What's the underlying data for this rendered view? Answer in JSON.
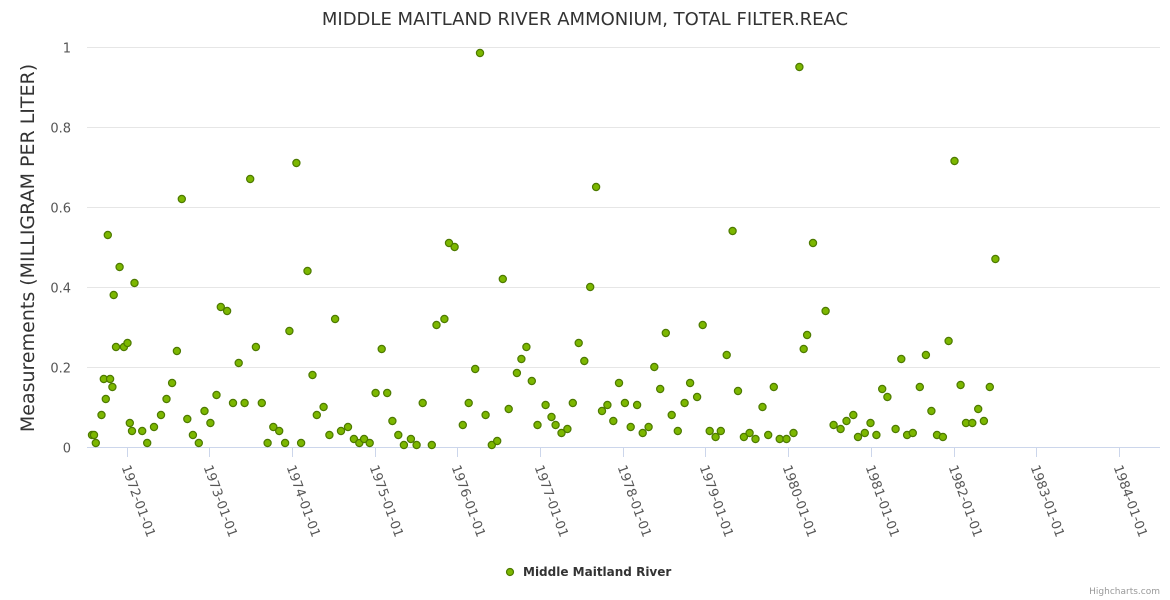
{
  "chart_data": {
    "type": "scatter",
    "title": "MIDDLE MAITLAND RIVER AMMONIUM, TOTAL FILTER.REAC",
    "ylabel": "Measurements (MILLIGRAM PER LITER)",
    "xlabel": "",
    "ylim": [
      0,
      1
    ],
    "yticks": [
      0,
      0.2,
      0.4,
      0.6,
      0.8,
      1
    ],
    "ytick_labels": [
      "0",
      "0.2",
      "0.4",
      "0.6",
      "0.8",
      "1"
    ],
    "xlim": [
      "1971-07-10",
      "1984-07-01"
    ],
    "xticks": [
      "1972-01-01",
      "1973-01-01",
      "1974-01-01",
      "1975-01-01",
      "1976-01-01",
      "1977-01-01",
      "1978-01-01",
      "1979-01-01",
      "1980-01-01",
      "1981-01-01",
      "1982-01-01",
      "1983-01-01",
      "1984-01-01"
    ],
    "grid": true,
    "legend_position": "bottom-center",
    "series": [
      {
        "name": "Middle Maitland River",
        "color": "#7cb700",
        "border_color": "#4d7a00",
        "points": [
          [
            "1971-08-01",
            0.03
          ],
          [
            "1971-08-10",
            0.03
          ],
          [
            "1971-08-18",
            0.01
          ],
          [
            "1971-09-12",
            0.08
          ],
          [
            "1971-09-22",
            0.17
          ],
          [
            "1971-10-01",
            0.12
          ],
          [
            "1971-10-10",
            0.53
          ],
          [
            "1971-10-20",
            0.17
          ],
          [
            "1971-10-30",
            0.15
          ],
          [
            "1971-11-05",
            0.38
          ],
          [
            "1971-11-15",
            0.25
          ],
          [
            "1971-12-01",
            0.45
          ],
          [
            "1971-12-20",
            0.25
          ],
          [
            "1972-01-05",
            0.26
          ],
          [
            "1972-01-15",
            0.06
          ],
          [
            "1972-01-25",
            0.04
          ],
          [
            "1972-02-05",
            0.41
          ],
          [
            "1972-03-10",
            0.04
          ],
          [
            "1972-04-01",
            0.01
          ],
          [
            "1972-05-01",
            0.05
          ],
          [
            "1972-06-01",
            0.08
          ],
          [
            "1972-06-25",
            0.12
          ],
          [
            "1972-07-20",
            0.16
          ],
          [
            "1972-08-10",
            0.24
          ],
          [
            "1972-09-01",
            0.62
          ],
          [
            "1972-09-25",
            0.07
          ],
          [
            "1972-10-20",
            0.03
          ],
          [
            "1972-11-15",
            0.01
          ],
          [
            "1972-12-10",
            0.09
          ],
          [
            "1973-01-05",
            0.06
          ],
          [
            "1973-02-01",
            0.13
          ],
          [
            "1973-02-20",
            0.35
          ],
          [
            "1973-03-20",
            0.34
          ],
          [
            "1973-04-15",
            0.11
          ],
          [
            "1973-05-10",
            0.21
          ],
          [
            "1973-06-05",
            0.11
          ],
          [
            "1973-06-30",
            0.67
          ],
          [
            "1973-07-25",
            0.25
          ],
          [
            "1973-08-20",
            0.11
          ],
          [
            "1973-09-15",
            0.01
          ],
          [
            "1973-10-10",
            0.05
          ],
          [
            "1973-11-05",
            0.04
          ],
          [
            "1973-12-01",
            0.01
          ],
          [
            "1973-12-20",
            0.29
          ],
          [
            "1974-01-20",
            0.71
          ],
          [
            "1974-02-10",
            0.01
          ],
          [
            "1974-03-10",
            0.44
          ],
          [
            "1974-04-01",
            0.18
          ],
          [
            "1974-04-20",
            0.08
          ],
          [
            "1974-05-20",
            0.1
          ],
          [
            "1974-06-15",
            0.03
          ],
          [
            "1974-07-10",
            0.32
          ],
          [
            "1974-08-05",
            0.04
          ],
          [
            "1974-09-05",
            0.05
          ],
          [
            "1974-10-01",
            0.02
          ],
          [
            "1974-10-25",
            0.01
          ],
          [
            "1974-11-15",
            0.02
          ],
          [
            "1974-12-10",
            0.01
          ],
          [
            "1975-01-05",
            0.135
          ],
          [
            "1975-02-01",
            0.245
          ],
          [
            "1975-02-25",
            0.135
          ],
          [
            "1975-03-20",
            0.065
          ],
          [
            "1975-04-15",
            0.03
          ],
          [
            "1975-05-10",
            0.005
          ],
          [
            "1975-06-10",
            0.02
          ],
          [
            "1975-07-05",
            0.005
          ],
          [
            "1975-08-01",
            0.11
          ],
          [
            "1975-09-10",
            0.005
          ],
          [
            "1975-10-01",
            0.305
          ],
          [
            "1975-11-05",
            0.32
          ],
          [
            "1975-11-25",
            0.51
          ],
          [
            "1975-12-20",
            0.5
          ],
          [
            "1976-01-25",
            0.055
          ],
          [
            "1976-02-20",
            0.11
          ],
          [
            "1976-03-20",
            0.195
          ],
          [
            "1976-04-10",
            0.985
          ],
          [
            "1976-05-05",
            0.08
          ],
          [
            "1976-06-01",
            0.005
          ],
          [
            "1976-06-25",
            0.015
          ],
          [
            "1976-07-20",
            0.42
          ],
          [
            "1976-08-15",
            0.095
          ],
          [
            "1976-09-20",
            0.185
          ],
          [
            "1976-10-10",
            0.22
          ],
          [
            "1976-11-01",
            0.25
          ],
          [
            "1976-11-25",
            0.165
          ],
          [
            "1976-12-20",
            0.055
          ],
          [
            "1977-01-25",
            0.105
          ],
          [
            "1977-02-20",
            0.075
          ],
          [
            "1977-03-10",
            0.055
          ],
          [
            "1977-04-05",
            0.035
          ],
          [
            "1977-05-01",
            0.045
          ],
          [
            "1977-05-25",
            0.11
          ],
          [
            "1977-06-20",
            0.26
          ],
          [
            "1977-07-15",
            0.215
          ],
          [
            "1977-08-10",
            0.4
          ],
          [
            "1977-09-05",
            0.65
          ],
          [
            "1977-10-01",
            0.09
          ],
          [
            "1977-10-25",
            0.105
          ],
          [
            "1977-11-20",
            0.065
          ],
          [
            "1977-12-15",
            0.16
          ],
          [
            "1978-01-10",
            0.11
          ],
          [
            "1978-02-05",
            0.05
          ],
          [
            "1978-03-05",
            0.105
          ],
          [
            "1978-03-30",
            0.035
          ],
          [
            "1978-04-25",
            0.05
          ],
          [
            "1978-05-20",
            0.2
          ],
          [
            "1978-06-15",
            0.145
          ],
          [
            "1978-07-10",
            0.285
          ],
          [
            "1978-08-05",
            0.08
          ],
          [
            "1978-09-01",
            0.04
          ],
          [
            "1978-10-01",
            0.11
          ],
          [
            "1978-10-25",
            0.16
          ],
          [
            "1978-11-25",
            0.125
          ],
          [
            "1978-12-20",
            0.305
          ],
          [
            "1979-01-20",
            0.04
          ],
          [
            "1979-02-15",
            0.025
          ],
          [
            "1979-03-10",
            0.04
          ],
          [
            "1979-04-05",
            0.23
          ],
          [
            "1979-05-01",
            0.54
          ],
          [
            "1979-05-25",
            0.14
          ],
          [
            "1979-06-20",
            0.025
          ],
          [
            "1979-07-15",
            0.035
          ],
          [
            "1979-08-10",
            0.02
          ],
          [
            "1979-09-10",
            0.1
          ],
          [
            "1979-10-05",
            0.03
          ],
          [
            "1979-10-30",
            0.15
          ],
          [
            "1979-11-25",
            0.02
          ],
          [
            "1979-12-25",
            0.02
          ],
          [
            "1980-01-25",
            0.035
          ],
          [
            "1980-02-20",
            0.95
          ],
          [
            "1980-03-10",
            0.245
          ],
          [
            "1980-03-25",
            0.28
          ],
          [
            "1980-04-20",
            0.51
          ],
          [
            "1980-06-15",
            0.34
          ],
          [
            "1980-07-20",
            0.055
          ],
          [
            "1980-08-20",
            0.045
          ],
          [
            "1980-09-15",
            0.065
          ],
          [
            "1980-10-15",
            0.08
          ],
          [
            "1980-11-05",
            0.025
          ],
          [
            "1980-12-05",
            0.035
          ],
          [
            "1980-12-30",
            0.06
          ],
          [
            "1981-01-25",
            0.03
          ],
          [
            "1981-02-20",
            0.145
          ],
          [
            "1981-03-15",
            0.125
          ],
          [
            "1981-04-20",
            0.045
          ],
          [
            "1981-05-15",
            0.22
          ],
          [
            "1981-06-10",
            0.03
          ],
          [
            "1981-07-05",
            0.035
          ],
          [
            "1981-08-05",
            0.15
          ],
          [
            "1981-09-01",
            0.23
          ],
          [
            "1981-09-25",
            0.09
          ],
          [
            "1981-10-20",
            0.03
          ],
          [
            "1981-11-15",
            0.025
          ],
          [
            "1981-12-10",
            0.265
          ],
          [
            "1982-01-05",
            0.715
          ],
          [
            "1982-02-01",
            0.155
          ],
          [
            "1982-02-25",
            0.06
          ],
          [
            "1982-03-25",
            0.06
          ],
          [
            "1982-04-20",
            0.095
          ],
          [
            "1982-05-15",
            0.065
          ],
          [
            "1982-06-10",
            0.15
          ],
          [
            "1982-07-05",
            0.47
          ]
        ]
      }
    ]
  },
  "legend": {
    "label": "Middle Maitland River"
  },
  "credits": {
    "label": "Highcharts.com"
  }
}
